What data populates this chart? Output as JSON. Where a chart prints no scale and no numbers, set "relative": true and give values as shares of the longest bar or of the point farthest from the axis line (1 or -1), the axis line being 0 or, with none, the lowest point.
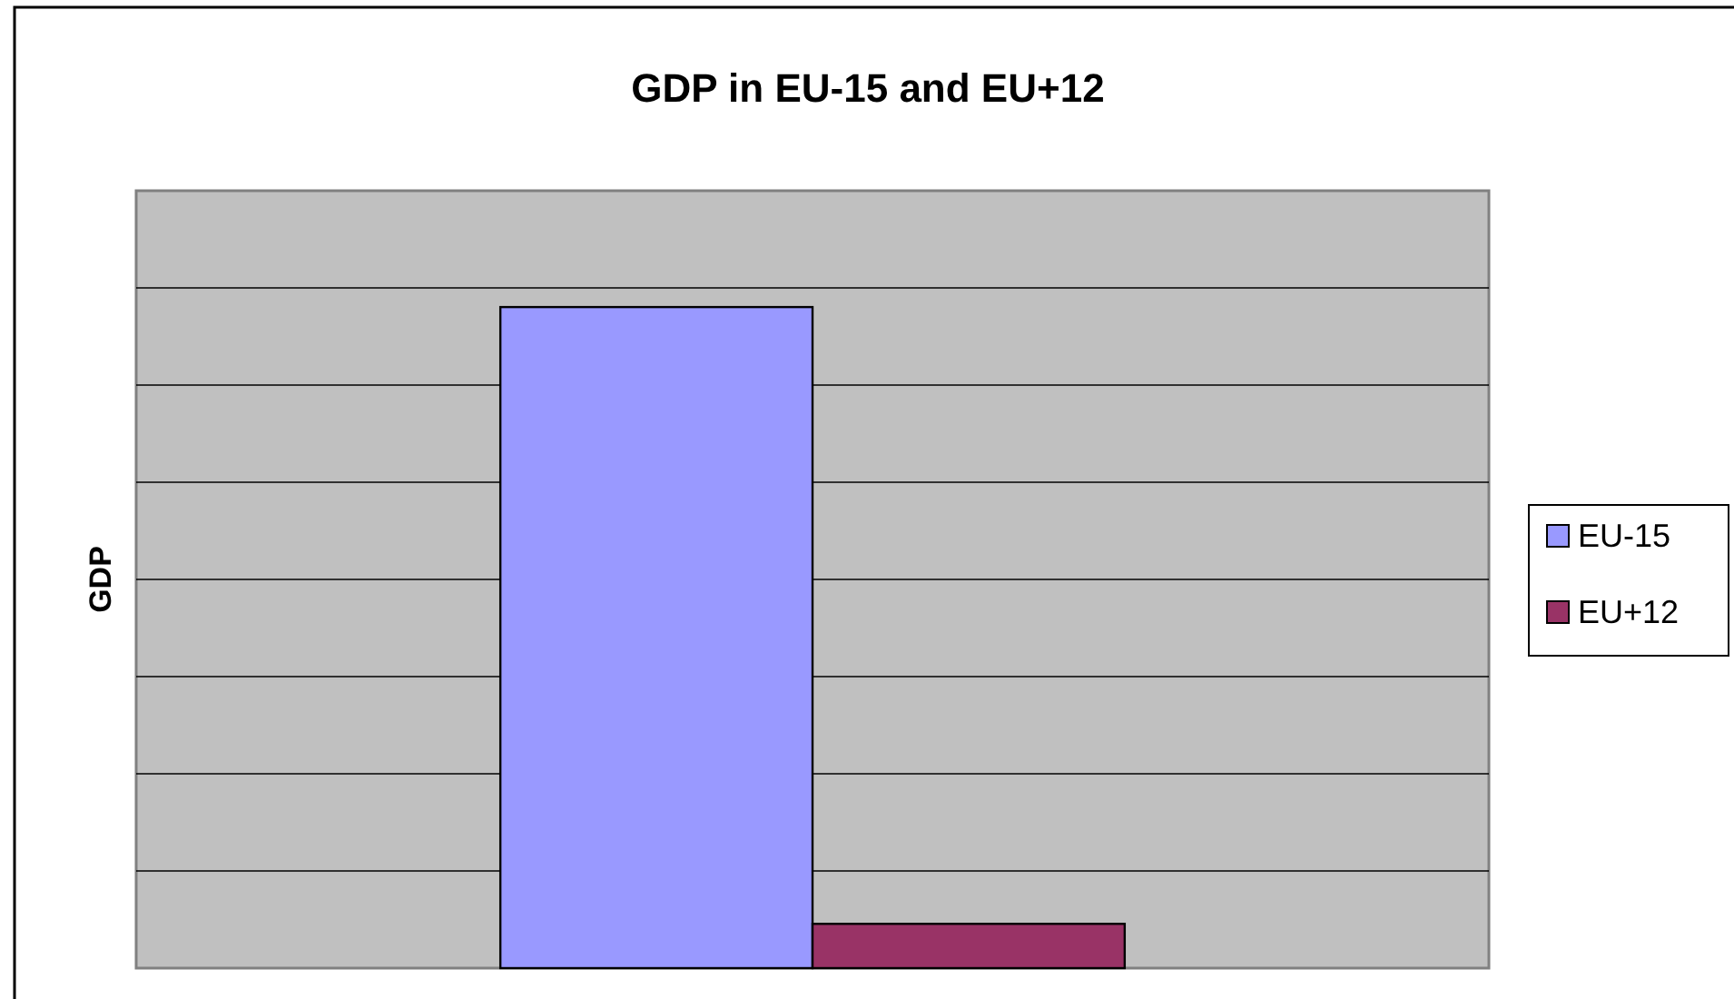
{
  "chart_data": {
    "type": "bar",
    "title": "GDP in EU-15 and EU+12",
    "ylabel": "GDP",
    "categories": [
      null
    ],
    "relative": true,
    "grid": "y",
    "legend": "right",
    "series": [
      {
        "name": "EU-15",
        "color": "#9999ff",
        "values": [
          1
        ]
      },
      {
        "name": "EU+12",
        "color": "#993366",
        "values": [
          0.067
        ]
      }
    ]
  }
}
